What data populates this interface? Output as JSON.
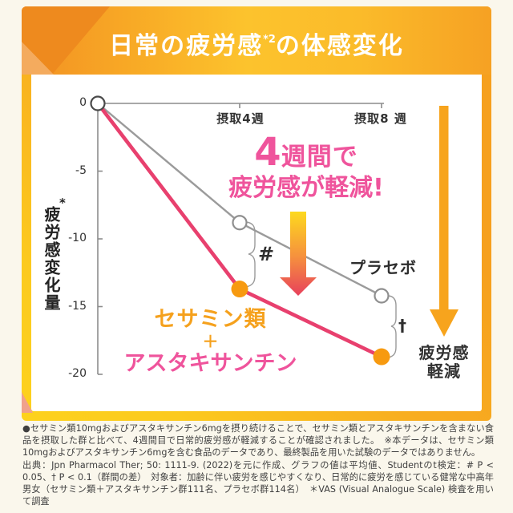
{
  "banner": {
    "title_pre": "日常の疲労感",
    "title_sup": "*2",
    "title_post": "の体感変化"
  },
  "chart_data": {
    "type": "line",
    "title": "日常の疲労感の体感変化",
    "ylabel": "疲労感変化量",
    "ylabel_mark": "*",
    "ylim": [
      -20,
      0
    ],
    "yticks": [
      0,
      -5,
      -10,
      -15,
      -20
    ],
    "ytick_labels": [
      "0",
      "-5",
      "-10",
      "-15",
      "-20"
    ],
    "x_weeks": [
      0,
      4,
      8
    ],
    "x_tick_labels": [
      "摂取4週",
      "摂取8 週"
    ],
    "grid": false,
    "series": [
      {
        "name": "プラセボ",
        "values": [
          0,
          -8.8,
          -14.2
        ],
        "color": "#9b9b9b",
        "marker": "open-circle"
      },
      {
        "name": "セサミン類＋アスタキサンチン",
        "values": [
          0,
          -13.7,
          -18.7
        ],
        "color": "#e8406e",
        "marker": "filled-circle",
        "marker_color": "#f79a10"
      }
    ],
    "annotations": [
      {
        "symbol": "#",
        "at": "摂取4週",
        "meaning": "P < 0.05"
      },
      {
        "symbol": "†",
        "at": "摂取8週",
        "meaning": "P < 0.1"
      }
    ]
  },
  "labels": {
    "placebo": "プラセボ",
    "treatment_line1": "セサミン類",
    "treatment_plus": "＋",
    "treatment_line2": "アスタキサンチン",
    "headline_num": "4",
    "headline_rest": "週間で",
    "headline_line2": "疲労感が軽減!",
    "right_arrow_line1": "疲労感",
    "right_arrow_line2": "軽減"
  },
  "footnotes": {
    "para1": "●セサミン類10mgおよびアスタキサンチン6mgを摂り続けることで、セサミン類とアスタキサンチンを含まない食品を摂取した群と比べて、4週間目で日常的疲労感が軽減することが確認されました。　※本データは、セサミン類10mgおよびアスタキサンチン6mgを含む食品のデータであり、最終製品を用いた試験のデータではありません。",
    "para2": "出典：Jpn Pharmacol Ther; 50: 1111-9. (2022)を元に作成、グラフの値は平均値、Studentのt検定：# P < 0.05、† P < 0.1（群間の差）　対象者：加齢に伴い疲労を感じやすくなり、日常的に疲労を感じている健常な中高年男女（セサミン類＋アスタキサンチン群111名、プラセボ群114名）　＊VAS (Visual Analogue Scale) 検査を用いて調査"
  },
  "colors": {
    "page_bg": "#faf7ec",
    "banner_orange": "#ee8a1e",
    "banner_yellow": "#fcc32d",
    "frame_yellow": "#fdd21d",
    "frame_orange": "#f6a01e",
    "line_gray": "#9b9b9b",
    "line_pink": "#e8406e",
    "dot_orange": "#f79a10",
    "text_pink": "#ef549c",
    "text_orange": "#f5a11d",
    "arrow_solid_orange": "#f7a41d"
  }
}
